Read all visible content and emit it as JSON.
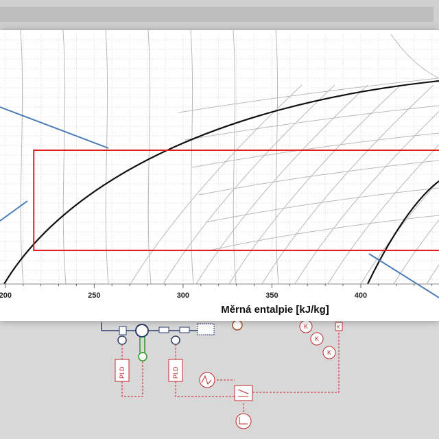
{
  "chart_data": {
    "type": "line",
    "xlabel": "Měrná entalpie [kJ/kg]",
    "x_ticks": [
      "200",
      "250",
      "300",
      "350",
      "400"
    ],
    "xlim": [
      197,
      444
    ],
    "grid": true,
    "series": [],
    "annotations": {
      "highlight_rect": {
        "x_from": 216,
        "x_to": 444,
        "color": "#e02020"
      },
      "callout_color": "#4a7bb5"
    }
  },
  "colors": {
    "saturation_curve": "#111111",
    "grid": "#d0d0d0",
    "isolines": "#b8b8b8",
    "diagram_red": "#c0282d",
    "diagram_green": "#2e9a2e",
    "diagram_navy": "#2c3d6b",
    "diagram_orange": "#a0522d"
  },
  "diagram": {
    "blocks": [
      "PI.D",
      "PI.D"
    ],
    "gain_labels": [
      "K",
      "K",
      "K",
      "K"
    ]
  }
}
